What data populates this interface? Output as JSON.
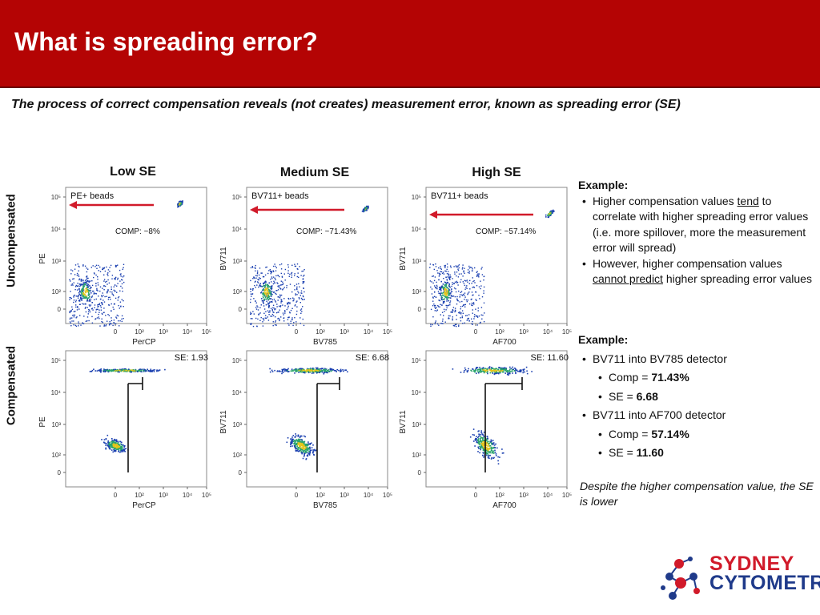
{
  "slide": {
    "title": "What is spreading error?",
    "subtitle": "The process of correct compensation reveals (not creates) measurement error, known as spreading error (SE)"
  },
  "row_labels": {
    "uncompensated": "Uncompensated",
    "compensated": "Compensated"
  },
  "columns": [
    {
      "title": "Low SE",
      "top": {
        "y_axis": "PE",
        "x_axis": "PerCP",
        "bead_label": "PE+ beads",
        "comp_label": "COMP: ~8%"
      },
      "bottom": {
        "y_axis": "PE",
        "x_axis": "PerCP",
        "se_label": "SE: 1.93"
      }
    },
    {
      "title": "Medium SE",
      "top": {
        "y_axis": "BV711",
        "x_axis": "BV785",
        "bead_label": "BV711+ beads",
        "comp_label": "COMP: ~71.43%"
      },
      "bottom": {
        "y_axis": "BV711",
        "x_axis": "BV785",
        "se_label": "SE: 6.68"
      }
    },
    {
      "title": "High SE",
      "top": {
        "y_axis": "BV711",
        "x_axis": "AF700",
        "bead_label": "BV711+ beads",
        "comp_label": "COMP: ~57.14%"
      },
      "bottom": {
        "y_axis": "BV711",
        "x_axis": "AF700",
        "se_label": "SE: 11.60"
      }
    }
  ],
  "ticks": {
    "y": [
      "10⁵",
      "10⁴",
      "10³",
      "10²",
      "0"
    ],
    "x": [
      "0",
      "10²",
      "10³",
      "10⁴",
      "10⁵"
    ]
  },
  "example1": {
    "title": "Example:",
    "bullet1_pre": "Higher compensation values ",
    "bullet1_em": "tend",
    "bullet1_post": " to correlate with higher spreading error values (i.e. more spillover, more the measurement error will spread)",
    "bullet2_pre": "However, higher compensation values ",
    "bullet2_em": "cannot predict",
    "bullet2_post": " higher spreading error values"
  },
  "example2": {
    "title": "Example:",
    "line1": "BV711 into BV785 detector",
    "comp1_label": "Comp = ",
    "comp1_value": "71.43%",
    "se1_label": "SE = ",
    "se1_value": "6.68",
    "line2": "BV711 into AF700 detector",
    "comp2_label": "Comp = ",
    "comp2_value": "57.14%",
    "se2_label": "SE = ",
    "se2_value": "11.60"
  },
  "note": "Despite the higher compensation value, the SE is lower",
  "logo": {
    "line1": "SYDNEY",
    "line2": "CYTOMETRY"
  }
}
